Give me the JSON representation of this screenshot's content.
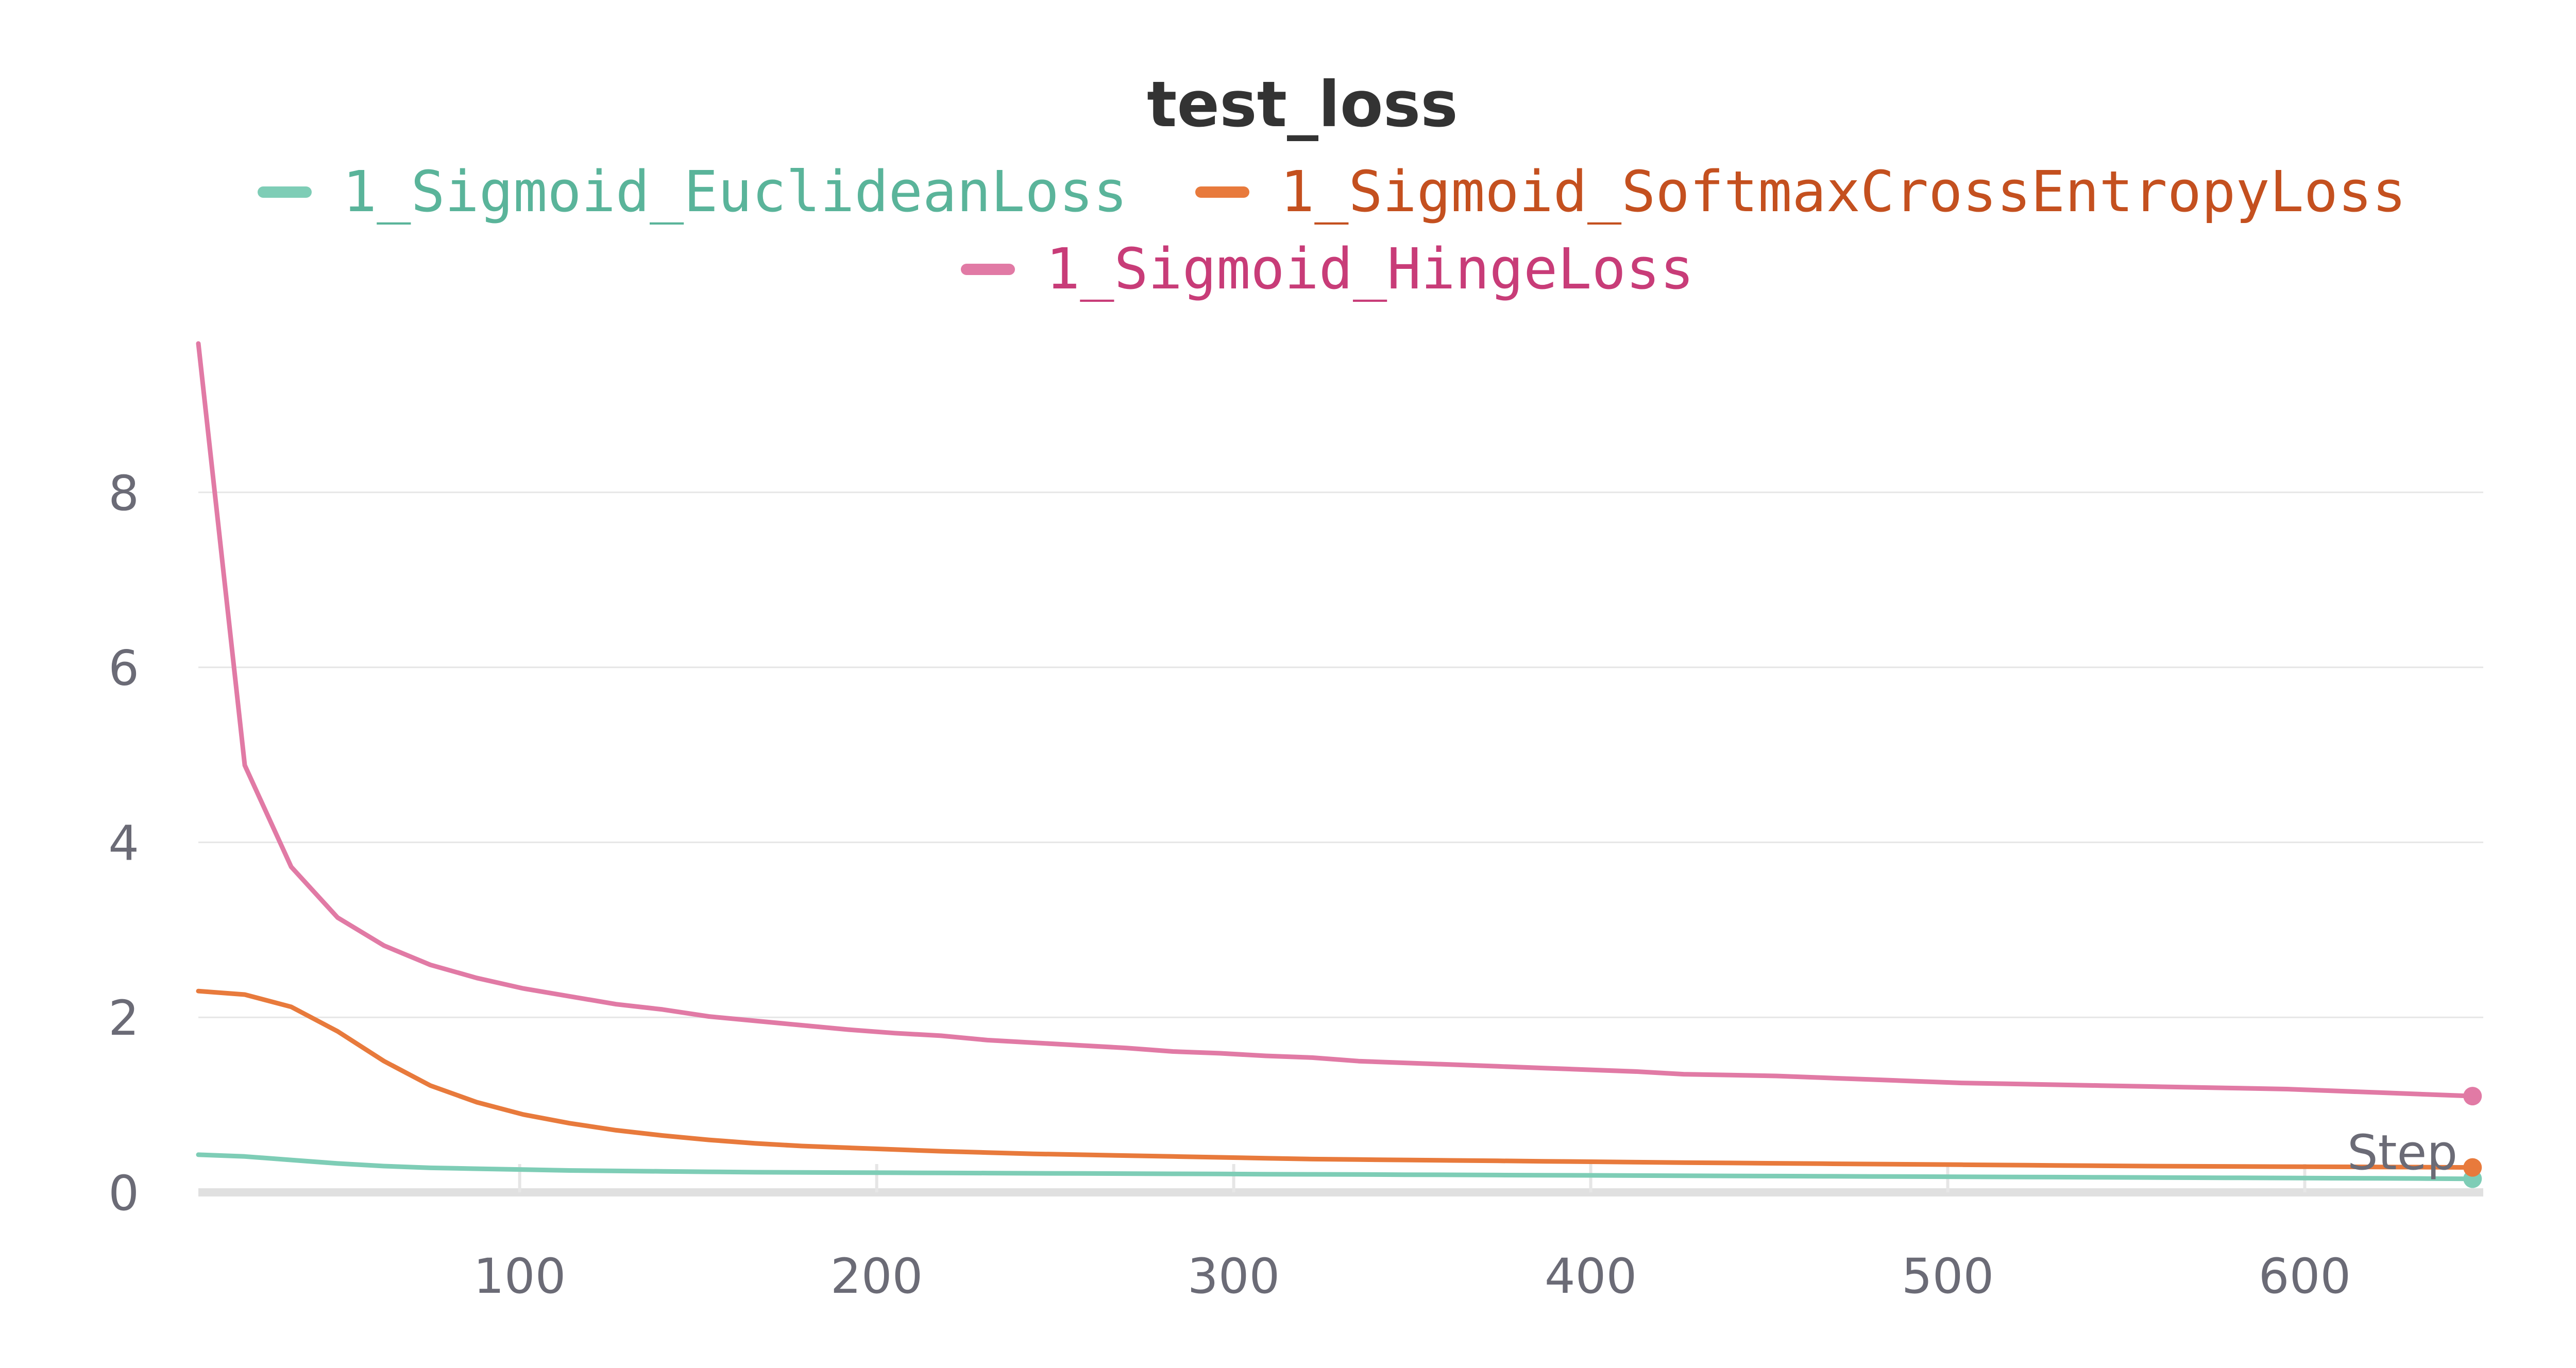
{
  "chart_data": {
    "type": "line",
    "title": "test_loss",
    "xlabel": "Step",
    "ylabel": "",
    "xlim": [
      10,
      650
    ],
    "ylim": [
      0,
      9.8
    ],
    "xticks": [
      100,
      200,
      300,
      400,
      500,
      600
    ],
    "yticks": [
      0,
      2,
      4,
      6,
      8
    ],
    "grid": "horizontal",
    "legend_position": "top",
    "x": [
      10,
      23,
      36,
      49,
      62,
      75,
      88,
      101,
      114,
      127,
      140,
      153,
      166,
      179,
      192,
      205,
      218,
      231,
      244,
      257,
      270,
      283,
      296,
      309,
      322,
      335,
      348,
      361,
      374,
      387,
      400,
      413,
      426,
      439,
      452,
      465,
      478,
      491,
      504,
      517,
      530,
      543,
      556,
      569,
      582,
      595,
      608,
      621,
      634,
      647
    ],
    "series": [
      {
        "name": "1_Sigmoid_EuclideanLoss",
        "color": "#7ecdb6",
        "label_color": "#5ab49a",
        "values": [
          0.43,
          0.41,
          0.37,
          0.33,
          0.3,
          0.28,
          0.27,
          0.26,
          0.25,
          0.245,
          0.24,
          0.235,
          0.23,
          0.228,
          0.226,
          0.224,
          0.222,
          0.22,
          0.218,
          0.216,
          0.214,
          0.212,
          0.21,
          0.208,
          0.206,
          0.204,
          0.202,
          0.2,
          0.198,
          0.196,
          0.194,
          0.192,
          0.19,
          0.188,
          0.186,
          0.184,
          0.182,
          0.18,
          0.178,
          0.176,
          0.174,
          0.172,
          0.17,
          0.168,
          0.166,
          0.164,
          0.162,
          0.16,
          0.158,
          0.155
        ]
      },
      {
        "name": "1_Sigmoid_SoftmaxCrossEntropyLoss",
        "color": "#e87a3c",
        "label_color": "#c4501f",
        "values": [
          2.3,
          2.26,
          2.12,
          1.84,
          1.5,
          1.22,
          1.03,
          0.89,
          0.79,
          0.71,
          0.65,
          0.6,
          0.56,
          0.53,
          0.51,
          0.49,
          0.47,
          0.455,
          0.44,
          0.43,
          0.42,
          0.41,
          0.4,
          0.39,
          0.38,
          0.375,
          0.37,
          0.365,
          0.36,
          0.355,
          0.35,
          0.345,
          0.34,
          0.336,
          0.332,
          0.328,
          0.324,
          0.32,
          0.316,
          0.312,
          0.308,
          0.304,
          0.3,
          0.298,
          0.296,
          0.294,
          0.292,
          0.29,
          0.288,
          0.285
        ]
      },
      {
        "name": "1_Sigmoid_HingeLoss",
        "color": "#e17aa5",
        "label_color": "#c83c78",
        "values": [
          9.7,
          4.88,
          3.72,
          3.14,
          2.82,
          2.6,
          2.45,
          2.33,
          2.24,
          2.15,
          2.09,
          2.01,
          1.96,
          1.91,
          1.86,
          1.82,
          1.79,
          1.74,
          1.71,
          1.68,
          1.65,
          1.61,
          1.59,
          1.56,
          1.54,
          1.5,
          1.48,
          1.46,
          1.44,
          1.42,
          1.4,
          1.38,
          1.35,
          1.34,
          1.33,
          1.31,
          1.29,
          1.27,
          1.25,
          1.24,
          1.23,
          1.22,
          1.21,
          1.2,
          1.19,
          1.18,
          1.16,
          1.14,
          1.12,
          1.1
        ]
      }
    ]
  },
  "colors": {
    "grid": "#e6e6e6",
    "baseline": "#e0e0e0",
    "ticks": "#6b6b76",
    "title": "#333333"
  }
}
